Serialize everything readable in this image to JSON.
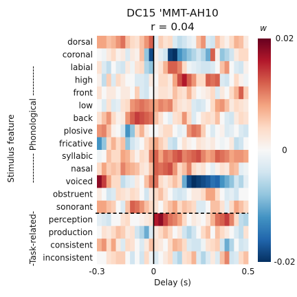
{
  "chart_data": {
    "type": "heatmap",
    "title": "DC15 'MMT-AH10",
    "subtitle": "r = 0.04",
    "xlabel": "Delay (s)",
    "ylabel": "Stimulus feature",
    "xlim": [
      -0.3,
      0.5
    ],
    "x_ticks": [
      "-0.3",
      "0",
      "0.5"
    ],
    "rows": [
      "dorsal",
      "coronal",
      "labial",
      "high",
      "front",
      "low",
      "back",
      "plosive",
      "fricative",
      "syllabic",
      "nasal",
      "voiced",
      "obstruent",
      "sonorant",
      "perception",
      "production",
      "consistent",
      "inconsistent"
    ],
    "groups": [
      {
        "label": "---------- Phonological ----------",
        "rows": [
          "dorsal",
          "coronal",
          "labial",
          "high",
          "front",
          "low",
          "back",
          "plosive",
          "fricative",
          "syllabic",
          "nasal",
          "voiced",
          "obstruent",
          "sonorant"
        ]
      },
      {
        "label": "-Task-related-",
        "rows": [
          "perception",
          "production",
          "consistent",
          "inconsistent"
        ]
      }
    ],
    "colorbar": {
      "label": "w",
      "min": -0.02,
      "max": 0.02,
      "ticks": [
        "0.02",
        "0",
        "-0.02"
      ],
      "colormap": "RdBu_r"
    },
    "zero_line": 0,
    "separator_after_row": "sonorant",
    "n_time_bins": 32,
    "values": [
      [
        0.008,
        0.008,
        0.006,
        0.007,
        0.009,
        0.011,
        0.006,
        0.004,
        0.003,
        0.006,
        0.009,
        0.012,
        -0.002,
        0.005,
        0.003,
        0.004,
        -0.003,
        -0.005,
        -0.004,
        -0.002,
        -0.001,
        0.006,
        0.009,
        -0.003,
        -0.004,
        0.006,
        0.003,
        0.001,
        0.004,
        0.007,
        0.006,
        0.002
      ],
      [
        0.0,
        -0.001,
        0.002,
        0.004,
        0.001,
        0.002,
        -0.003,
        0.002,
        0.001,
        0.006,
        -0.008,
        -0.018,
        0.001,
        -0.002,
        -0.004,
        -0.019,
        -0.02,
        -0.012,
        -0.01,
        -0.008,
        -0.006,
        -0.004,
        -0.006,
        -0.01,
        0.012,
        0.001,
        -0.008,
        -0.006,
        -0.004,
        0.002,
        0.004,
        0.004
      ],
      [
        0.003,
        -0.003,
        -0.005,
        0.0,
        -0.003,
        -0.004,
        0.002,
        -0.001,
        0.003,
        0.004,
        -0.006,
        -0.008,
        0.001,
        0.003,
        0.007,
        0.012,
        0.012,
        0.01,
        0.004,
        -0.001,
        -0.002,
        -0.003,
        -0.004,
        -0.004,
        -0.003,
        0.0,
        0.006,
        0.009,
        0.0,
        -0.003,
        -0.004,
        0.001
      ],
      [
        0.001,
        -0.005,
        0.005,
        -0.003,
        0.004,
        0.002,
        0.0,
        0.0,
        -0.003,
        -0.003,
        -0.004,
        0.002,
        0.0,
        0.004,
        0.004,
        0.002,
        0.008,
        0.013,
        0.016,
        0.012,
        0.009,
        0.004,
        0.004,
        0.012,
        0.011,
        0.012,
        -0.003,
        -0.004,
        0.0,
        0.004,
        0.001,
        -0.001
      ],
      [
        0.003,
        0.0,
        0.002,
        0.002,
        0.0,
        0.002,
        0.002,
        0.0,
        0.005,
        -0.003,
        -0.004,
        0.0,
        0.001,
        0.003,
        0.003,
        0.002,
        0.006,
        0.004,
        0.003,
        0.007,
        0.003,
        0.0,
        0.001,
        0.002,
        0.004,
        -0.003,
        0.002,
        0.0,
        0.004,
        0.007,
        0.012,
        0.005
      ],
      [
        0.0,
        -0.003,
        0.003,
        -0.003,
        -0.002,
        0.003,
        0.004,
        0.009,
        0.01,
        0.011,
        0.01,
        0.009,
        0.008,
        0.01,
        0.009,
        0.01,
        0.005,
        0.003,
        0.002,
        0.003,
        -0.003,
        -0.004,
        -0.003,
        0.0,
        0.004,
        0.008,
        0.009,
        0.006,
        0.002,
        0.004,
        0.003,
        0.002
      ],
      [
        0.003,
        0.006,
        0.009,
        0.004,
        0.001,
        0.002,
        0.009,
        0.012,
        0.014,
        0.013,
        0.012,
        0.011,
        0.006,
        0.003,
        0.0,
        -0.002,
        0.003,
        0.004,
        0.009,
        0.004,
        -0.003,
        0.0,
        0.003,
        0.004,
        0.003,
        0.006,
        0.0,
        -0.003,
        -0.004,
        0.002,
        0.004,
        0.003
      ],
      [
        0.009,
        0.01,
        0.006,
        0.001,
        0.0,
        -0.004,
        -0.012,
        -0.008,
        0.004,
        0.007,
        0.002,
        0.0,
        0.0,
        0.002,
        0.004,
        0.004,
        0.0,
        -0.002,
        -0.001,
        0.009,
        0.011,
        0.01,
        0.005,
        0.0,
        -0.003,
        0.0,
        0.001,
        -0.003,
        -0.002,
        0.0,
        -0.003,
        -0.004
      ],
      [
        -0.012,
        -0.008,
        0.004,
        0.007,
        0.004,
        0.006,
        -0.008,
        -0.004,
        -0.002,
        0.0,
        0.004,
        0.006,
        0.008,
        0.005,
        0.003,
        -0.004,
        -0.005,
        0.0,
        0.003,
        0.001,
        0.0,
        0.003,
        0.002,
        0.001,
        0.002,
        0.0,
        -0.001,
        0.0,
        0.002,
        -0.005,
        -0.004,
        0.0
      ],
      [
        -0.001,
        0.0,
        0.006,
        0.004,
        0.004,
        0.008,
        0.007,
        0.004,
        0.001,
        0.004,
        0.003,
        0.01,
        0.012,
        0.008,
        0.011,
        0.01,
        0.012,
        0.013,
        0.01,
        0.011,
        0.012,
        0.013,
        0.01,
        0.008,
        0.009,
        0.012,
        0.011,
        0.01,
        0.008,
        0.009,
        0.009,
        0.008
      ],
      [
        0.004,
        0.008,
        0.005,
        0.006,
        0.005,
        0.01,
        0.008,
        0.007,
        0.006,
        0.003,
        0.002,
        0.006,
        0.012,
        0.011,
        0.012,
        0.013,
        0.009,
        0.004,
        0.006,
        0.01,
        0.004,
        0.002,
        0.003,
        0.0,
        -0.002,
        0.001,
        0.003,
        0.002,
        0.007,
        0.006,
        -0.002,
        -0.001
      ],
      [
        0.018,
        0.014,
        0.008,
        0.004,
        0.004,
        -0.005,
        -0.003,
        -0.002,
        0.002,
        0.0,
        0.006,
        0.01,
        0.011,
        0.004,
        0.002,
        0.004,
        0.006,
        0.004,
        -0.01,
        -0.018,
        -0.02,
        -0.019,
        -0.018,
        -0.017,
        -0.015,
        -0.016,
        -0.012,
        -0.01,
        -0.008,
        -0.004,
        -0.006,
        -0.002
      ],
      [
        0.002,
        0.0,
        -0.004,
        -0.003,
        0.004,
        0.003,
        0.002,
        0.004,
        0.003,
        0.0,
        -0.004,
        0.002,
        0.004,
        0.006,
        0.003,
        0.0,
        -0.003,
        -0.004,
        -0.003,
        0.0,
        0.002,
        0.002,
        0.004,
        0.008,
        0.008,
        0.004,
        0.0,
        -0.003,
        -0.002,
        -0.004,
        0.0,
        0.0
      ],
      [
        0.008,
        0.008,
        0.006,
        0.005,
        0.0,
        -0.003,
        0.006,
        0.012,
        0.011,
        0.009,
        0.006,
        0.004,
        0.003,
        0.0,
        0.004,
        0.006,
        0.008,
        0.004,
        0.006,
        0.005,
        0.004,
        -0.003,
        -0.003,
        0.0,
        0.006,
        0.006,
        0.003,
        -0.002,
        0.004,
        0.008,
        0.006,
        0.004
      ],
      [
        -0.002,
        -0.003,
        -0.004,
        0.0,
        0.0,
        0.003,
        0.004,
        0.0,
        0.0,
        0.001,
        0.002,
        0.003,
        0.016,
        0.018,
        0.014,
        0.011,
        0.01,
        0.008,
        0.004,
        0.0,
        0.002,
        0.001,
        0.0,
        0.003,
        0.007,
        0.011,
        0.012,
        0.014,
        0.01,
        0.004,
        -0.005,
        -0.006
      ],
      [
        0.0,
        0.003,
        0.002,
        0.004,
        0.006,
        0.005,
        0.002,
        0.003,
        -0.004,
        -0.006,
        -0.01,
        -0.003,
        0.002,
        0.004,
        0.006,
        0.004,
        0.0,
        0.002,
        -0.004,
        -0.006,
        -0.004,
        0.0,
        0.004,
        0.006,
        0.0,
        0.006,
        0.004,
        0.002,
        0.0,
        -0.003,
        -0.005,
        0.003
      ],
      [
        0.007,
        0.009,
        0.004,
        0.008,
        0.002,
        -0.003,
        0.004,
        0.003,
        0.0,
        -0.003,
        0.002,
        0.006,
        0.003,
        0.002,
        0.0,
        0.004,
        0.007,
        0.006,
        0.004,
        -0.003,
        -0.004,
        -0.004,
        -0.001,
        0.003,
        0.004,
        0.005,
        -0.004,
        -0.01,
        -0.006,
        0.0,
        -0.004,
        -0.003
      ],
      [
        0.0,
        0.0,
        0.003,
        0.004,
        0.005,
        0.005,
        0.0,
        -0.004,
        0.0,
        -0.004,
        0.004,
        -0.001,
        -0.003,
        0.0,
        0.002,
        0.004,
        -0.004,
        -0.006,
        0.003,
        0.004,
        0.007,
        -0.003,
        -0.006,
        -0.003,
        0.002,
        -0.003,
        0.006,
        0.01,
        -0.004,
        -0.003,
        0.004,
        0.006
      ]
    ]
  }
}
